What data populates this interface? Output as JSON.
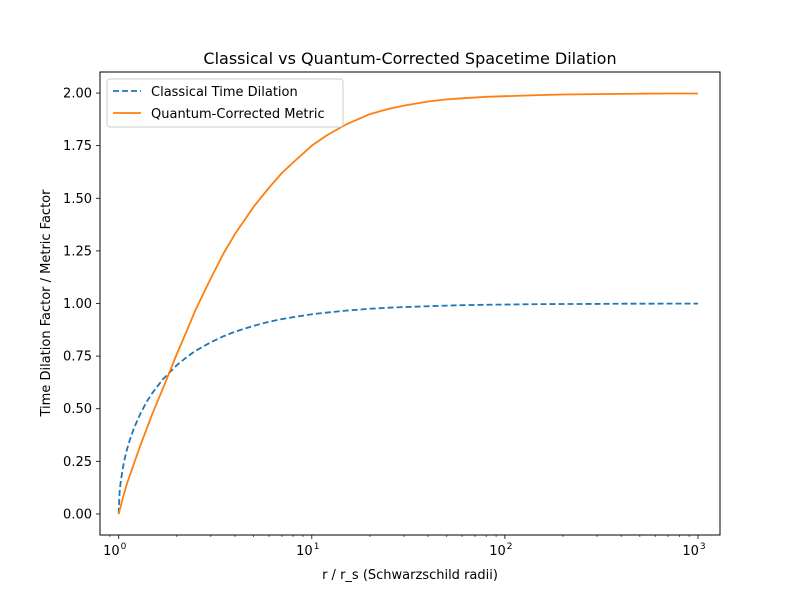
{
  "chart_data": {
    "type": "line",
    "title": "Classical vs Quantum-Corrected Spacetime Dilation",
    "xlabel": "r / r_s (Schwarzschild radii)",
    "ylabel": "Time Dilation Factor / Metric Factor",
    "xscale": "log",
    "xlim": [
      0.8,
      1300
    ],
    "ylim": [
      -0.1,
      2.1
    ],
    "grid": false,
    "legend_position": "top-left",
    "x_ticks": [
      {
        "value": 1,
        "base": "10",
        "exp": "0"
      },
      {
        "value": 10,
        "base": "10",
        "exp": "1"
      },
      {
        "value": 100,
        "base": "10",
        "exp": "2"
      },
      {
        "value": 1000,
        "base": "10",
        "exp": "3"
      }
    ],
    "y_ticks": [
      {
        "value": 0.0,
        "label": "0.00"
      },
      {
        "value": 0.25,
        "label": "0.25"
      },
      {
        "value": 0.5,
        "label": "0.50"
      },
      {
        "value": 0.75,
        "label": "0.75"
      },
      {
        "value": 1.0,
        "label": "1.00"
      },
      {
        "value": 1.25,
        "label": "1.25"
      },
      {
        "value": 1.5,
        "label": "1.50"
      },
      {
        "value": 1.75,
        "label": "1.75"
      },
      {
        "value": 2.0,
        "label": "2.00"
      }
    ],
    "series": [
      {
        "name": "Classical Time Dilation",
        "color": "#1f77b4",
        "linestyle": "dashed",
        "x": [
          1.0,
          1.01,
          1.02,
          1.05,
          1.08,
          1.1,
          1.15,
          1.2,
          1.3,
          1.4,
          1.5,
          1.7,
          2.0,
          2.3,
          2.5,
          3,
          3.5,
          4,
          5,
          6,
          7,
          8,
          10,
          12,
          15,
          20,
          25,
          30,
          40,
          50,
          60,
          80,
          100,
          150,
          200,
          300,
          400,
          500,
          700,
          1000
        ],
        "y": [
          0.0,
          0.0995,
          0.14,
          0.218,
          0.272,
          0.302,
          0.361,
          0.408,
          0.48,
          0.535,
          0.577,
          0.642,
          0.707,
          0.752,
          0.775,
          0.816,
          0.845,
          0.866,
          0.894,
          0.913,
          0.926,
          0.935,
          0.949,
          0.957,
          0.966,
          0.975,
          0.98,
          0.983,
          0.987,
          0.99,
          0.992,
          0.994,
          0.995,
          0.997,
          0.9975,
          0.998,
          0.999,
          0.999,
          0.9993,
          0.9995
        ]
      },
      {
        "name": "Quantum-Corrected Metric",
        "color": "#ff7f0e",
        "linestyle": "solid",
        "x": [
          1.0,
          1.05,
          1.1,
          1.2,
          1.3,
          1.5,
          1.7,
          2.0,
          2.3,
          2.5,
          3,
          3.5,
          4,
          5,
          6,
          7,
          8,
          10,
          12,
          15,
          20,
          25,
          30,
          40,
          50,
          60,
          80,
          100,
          150,
          200,
          300,
          400,
          500,
          700,
          1000
        ],
        "y": [
          0.0,
          0.075,
          0.14,
          0.24,
          0.33,
          0.48,
          0.6,
          0.76,
          0.89,
          0.97,
          1.12,
          1.24,
          1.33,
          1.46,
          1.55,
          1.62,
          1.67,
          1.75,
          1.8,
          1.85,
          1.9,
          1.925,
          1.94,
          1.96,
          1.97,
          1.975,
          1.982,
          1.985,
          1.99,
          1.993,
          1.995,
          1.996,
          1.997,
          1.998,
          1.998
        ]
      }
    ]
  }
}
